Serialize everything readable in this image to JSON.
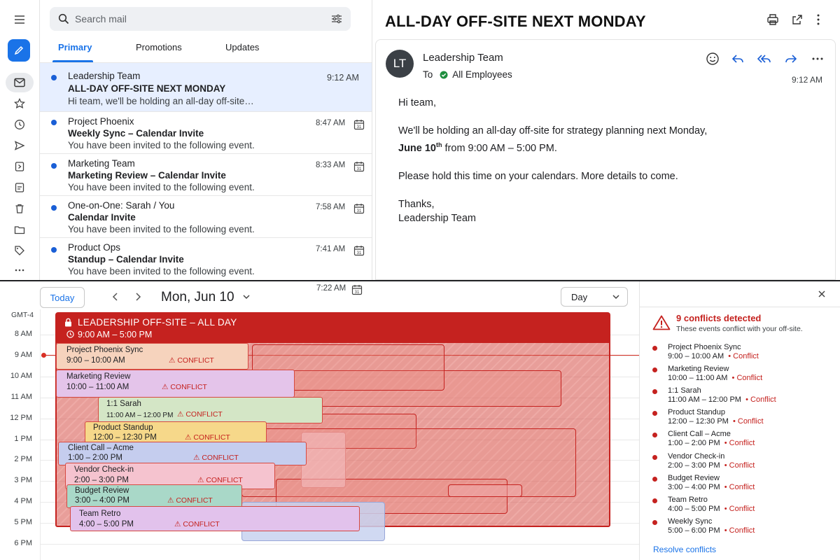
{
  "colors": {
    "accent": "#1a73e8",
    "conflict": "#c5221f",
    "unread_dot": "#1a5fd6"
  },
  "search": {
    "placeholder": "Search mail"
  },
  "tabs": [
    {
      "label": "Primary"
    },
    {
      "label": "Promotions"
    },
    {
      "label": "Updates"
    }
  ],
  "rail_icons": [
    "menu-icon",
    "compose-icon",
    "inbox-icon",
    "star-icon",
    "clock-icon",
    "send-icon",
    "document-icon",
    "drafts-icon",
    "trash-icon",
    "folder-icon",
    "label-icon",
    "more-icon"
  ],
  "emails": [
    {
      "sender": "Leadership Team",
      "subject": "ALL-DAY OFF-SITE NEXT MONDAY",
      "snippet": "Hi team, we'll be holding an all-day off-site…",
      "time": "9:12 AM",
      "calendar": false
    },
    {
      "sender": "Project Phoenix",
      "subject": "Weekly Sync – Calendar Invite",
      "snippet": "You have been invited to the following event.",
      "time": "8:47 AM",
      "calendar": true
    },
    {
      "sender": "Marketing Team",
      "subject": "Marketing Review – Calendar Invite",
      "snippet": "You have been invited to the following event.",
      "time": "8:33 AM",
      "calendar": true
    },
    {
      "sender": "One-on-One: Sarah / You",
      "subject": "Calendar Invite",
      "snippet": "You have been invited to the following event.",
      "time": "7:58 AM",
      "calendar": true
    },
    {
      "sender": "Product Ops",
      "subject": "Standup – Calendar Invite",
      "snippet": "You have been invited to the following event.",
      "time": "7:41 AM",
      "calendar": true
    },
    {
      "sender": "",
      "subject": "",
      "snippet": "",
      "time": "7:22 AM",
      "calendar": true
    }
  ],
  "message": {
    "title": "ALL-DAY OFF-SITE NEXT MONDAY",
    "avatar": "LT",
    "from": "Leadership Team",
    "to_label": "To",
    "to": "All Employees",
    "time": "9:12 AM",
    "greeting": "Hi team,",
    "line1": "We'll be holding an all-day off-site for strategy planning next Monday,",
    "date_bold": "June 10",
    "date_sup": "th",
    "line2_rest": " from 9:00 AM – 5:00 PM.",
    "line3": "Please hold this time on your calendars. More details to come.",
    "signoff": "Thanks,",
    "signature": "Leadership Team"
  },
  "calendar": {
    "today": "Today",
    "date": "Mon, Jun 10",
    "view": "Day",
    "timezone": "GMT-4",
    "hours": [
      "8 AM",
      "9 AM",
      "10 AM",
      "11 AM",
      "12 PM",
      "1 PM",
      "2 PM",
      "3 PM",
      "4 PM",
      "5 PM",
      "6 PM"
    ],
    "offsite": {
      "title": "LEADERSHIP OFF-SITE – ALL DAY",
      "time": "9:00 AM – 5:00 PM"
    },
    "conflict_label": "⚠ CONFLICT",
    "events": [
      {
        "title": "Project Phoenix Sync",
        "time": "9:00 – 10:00 AM",
        "fill": "#f6d3bd"
      },
      {
        "title": "Marketing Review",
        "time": "10:00 – 11:00 AM",
        "fill": "#e4c4ea"
      },
      {
        "title": "1:1 Sarah",
        "time": "11:00 AM – 12:00 PM",
        "fill": "#d4e6c6"
      },
      {
        "title": "Product Standup",
        "time": "12:00 – 12:30 PM",
        "fill": "#f6d88a"
      },
      {
        "title": "Client Call – Acme",
        "time": "1:00 – 2:00 PM",
        "fill": "#c5cdee"
      },
      {
        "title": "Vendor Check-in",
        "time": "2:00 – 3:00 PM",
        "fill": "#f5c3cf"
      },
      {
        "title": "Budget Review",
        "time": "3:00 – 4:00 PM",
        "fill": "#a9d8c8"
      },
      {
        "title": "Team Retro",
        "time": "4:00 – 5:00 PM",
        "fill": "#e2c2ec"
      }
    ]
  },
  "conflicts": {
    "title": "9 conflicts detected",
    "subtitle": "These events conflict with your off-site.",
    "label": "Conflict",
    "items": [
      {
        "name": "Project Phoenix Sync",
        "time": "9:00 – 10:00 AM"
      },
      {
        "name": "Marketing Review",
        "time": "10:00 – 11:00 AM"
      },
      {
        "name": "1:1 Sarah",
        "time": "11:00 AM – 12:00 PM"
      },
      {
        "name": "Product Standup",
        "time": "12:00 – 12:30 PM"
      },
      {
        "name": "Client Call – Acme",
        "time": "1:00 – 2:00 PM"
      },
      {
        "name": "Vendor Check-in",
        "time": "2:00 – 3:00 PM"
      },
      {
        "name": "Budget Review",
        "time": "3:00 – 4:00 PM"
      },
      {
        "name": "Team Retro",
        "time": "4:00 – 5:00 PM"
      },
      {
        "name": "Weekly Sync",
        "time": "5:00 – 6:00 PM"
      }
    ],
    "resolve": "Resolve conflicts"
  }
}
